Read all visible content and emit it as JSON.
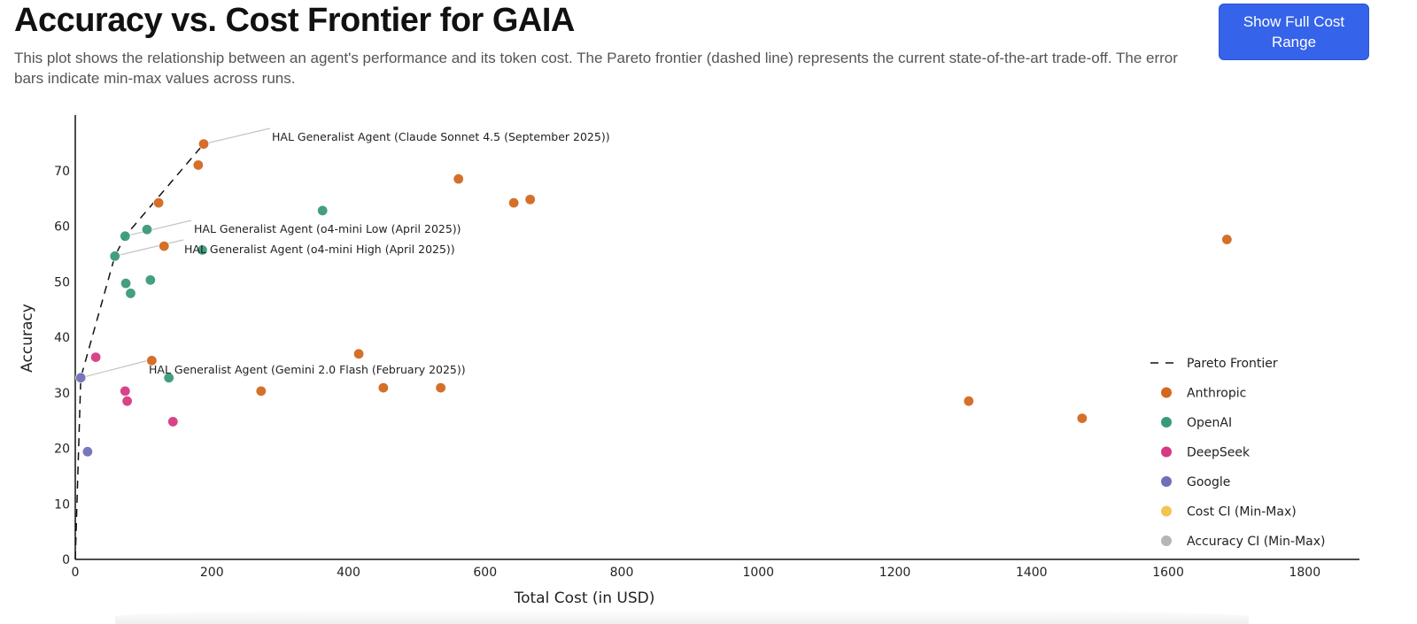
{
  "header": {
    "title": "Accuracy vs. Cost Frontier for GAIA",
    "description": "This plot shows the relationship between an agent's performance and its token cost. The Pareto frontier (dashed line) represents the current state-of-the-art trade-off. The error bars indicate min-max values across runs.",
    "button_label": "Show Full Cost Range"
  },
  "chart_data": {
    "type": "scatter",
    "title": "Accuracy vs. Cost Frontier for GAIA",
    "xlabel": "Total Cost (in USD)",
    "ylabel": "Accuracy",
    "xlim": [
      0,
      1880
    ],
    "ylim": [
      0,
      80
    ],
    "xticks": [
      0,
      200,
      400,
      600,
      800,
      1000,
      1200,
      1400,
      1600,
      1800
    ],
    "yticks": [
      0,
      10,
      20,
      30,
      40,
      50,
      60,
      70
    ],
    "grid": false,
    "legend_position": "right",
    "colors": {
      "Anthropic": "#d2691e",
      "OpenAI": "#3a9a78",
      "DeepSeek": "#d63a82",
      "Google": "#7070b8",
      "Cost CI (Min-Max)": "#f3c550",
      "Accuracy CI (Min-Max)": "#b5b5b5",
      "Pareto Frontier": "#111111"
    },
    "legend": [
      "Pareto Frontier",
      "Anthropic",
      "OpenAI",
      "DeepSeek",
      "Google",
      "Cost CI (Min-Max)",
      "Accuracy CI (Min-Max)"
    ],
    "series": [
      {
        "name": "Anthropic",
        "points": [
          {
            "x": 188,
            "y": 74.8
          },
          {
            "x": 180,
            "y": 71.0
          },
          {
            "x": 122,
            "y": 64.2
          },
          {
            "x": 130,
            "y": 56.4
          },
          {
            "x": 112,
            "y": 35.8
          },
          {
            "x": 272,
            "y": 30.3
          },
          {
            "x": 415,
            "y": 37.0
          },
          {
            "x": 451,
            "y": 30.9
          },
          {
            "x": 535,
            "y": 30.9
          },
          {
            "x": 561,
            "y": 68.5
          },
          {
            "x": 642,
            "y": 64.2
          },
          {
            "x": 666,
            "y": 64.8
          },
          {
            "x": 1308,
            "y": 28.5
          },
          {
            "x": 1474,
            "y": 25.4
          },
          {
            "x": 1686,
            "y": 57.6
          }
        ]
      },
      {
        "name": "OpenAI",
        "points": [
          {
            "x": 73,
            "y": 58.2
          },
          {
            "x": 105,
            "y": 59.4
          },
          {
            "x": 58,
            "y": 54.6
          },
          {
            "x": 74,
            "y": 49.7
          },
          {
            "x": 81,
            "y": 47.9
          },
          {
            "x": 110,
            "y": 50.3
          },
          {
            "x": 186,
            "y": 55.7
          },
          {
            "x": 362,
            "y": 62.8
          },
          {
            "x": 137,
            "y": 32.7
          }
        ]
      },
      {
        "name": "DeepSeek",
        "points": [
          {
            "x": 30,
            "y": 36.4
          },
          {
            "x": 73,
            "y": 30.3
          },
          {
            "x": 76,
            "y": 28.5
          },
          {
            "x": 143,
            "y": 24.8
          }
        ]
      },
      {
        "name": "Google",
        "points": [
          {
            "x": 8,
            "y": 32.7
          },
          {
            "x": 18,
            "y": 19.4
          }
        ]
      }
    ],
    "pareto_frontier": [
      {
        "x": 0,
        "y": 0
      },
      {
        "x": 8,
        "y": 32.7
      },
      {
        "x": 58,
        "y": 54.6
      },
      {
        "x": 73,
        "y": 58.2
      },
      {
        "x": 188,
        "y": 74.8
      }
    ],
    "annotations": [
      {
        "text": "HAL Generalist Agent (Claude Sonnet 4.5 (September 2025))",
        "x": 188,
        "y": 74.8
      },
      {
        "text": "HAL Generalist Agent (o4-mini Low (April 2025))",
        "x": 73,
        "y": 58.2
      },
      {
        "text": "HAL Generalist Agent (o4-mini High (April 2025))",
        "x": 58,
        "y": 54.6
      },
      {
        "text": "HAL Generalist Agent (Gemini 2.0 Flash (February 2025))",
        "x": 8,
        "y": 32.7
      }
    ]
  }
}
